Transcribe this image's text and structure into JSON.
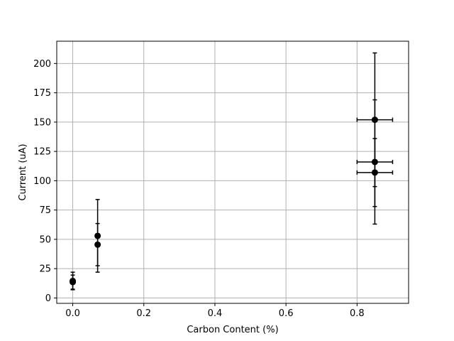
{
  "chart_data": {
    "type": "scatter",
    "title": "",
    "xlabel": "Carbon Content (%)",
    "ylabel": "Current (uA)",
    "xlim": [
      -0.045,
      0.945
    ],
    "ylim": [
      -4.6,
      219.0
    ],
    "xticks": [
      0.0,
      0.2,
      0.4,
      0.6,
      0.8
    ],
    "xtick_labels": [
      "0.0",
      "0.2",
      "0.4",
      "0.6",
      "0.8"
    ],
    "yticks": [
      0,
      25,
      50,
      75,
      100,
      125,
      150,
      175,
      200
    ],
    "ytick_labels": [
      "0",
      "25",
      "50",
      "75",
      "100",
      "125",
      "150",
      "175",
      "200"
    ],
    "grid": true,
    "marker_color": "#000000",
    "grid_color": "#b0b0b0",
    "points": [
      {
        "x": 0.0,
        "y": 14.5,
        "xerr": 0.0,
        "yerr": 7.5
      },
      {
        "x": 0.0,
        "y": 13.5,
        "xerr": 0.0,
        "yerr": 6.0
      },
      {
        "x": 0.07,
        "y": 53.0,
        "xerr": 0.005,
        "yerr": 31.0
      },
      {
        "x": 0.07,
        "y": 45.5,
        "xerr": 0.005,
        "yerr": 18.0
      },
      {
        "x": 0.85,
        "y": 152.0,
        "xerr": 0.05,
        "yerr": 57.0
      },
      {
        "x": 0.85,
        "y": 116.0,
        "xerr": 0.05,
        "yerr": 53.0
      },
      {
        "x": 0.85,
        "y": 107.0,
        "xerr": 0.05,
        "yerr": 29.0
      }
    ]
  }
}
